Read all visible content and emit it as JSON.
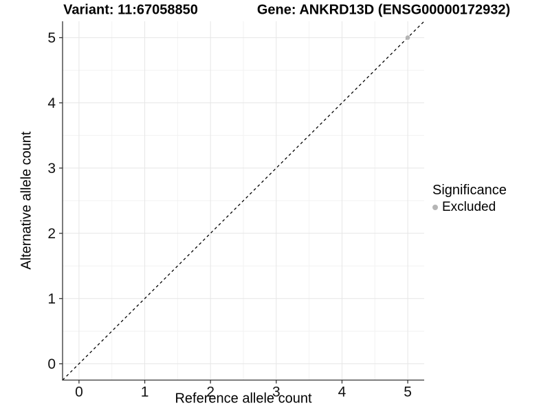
{
  "header": {
    "variant_title": "Variant: 11:67058850",
    "gene_title": "Gene: ANKRD13D (ENSG00000172932)"
  },
  "axes": {
    "x": {
      "label": "Reference allele count"
    },
    "y": {
      "label": "Alternative allele count"
    }
  },
  "legend": {
    "title": "Significance",
    "position": "right",
    "items": [
      {
        "label": "Excluded",
        "color": "#b5b5b5"
      }
    ]
  },
  "colors": {
    "background": "#ffffff",
    "grid_major": "#e6e6e6",
    "grid_minor": "#f2f2f2",
    "axis": "#333333",
    "tick_text": "#111111",
    "title_text": "#000000",
    "excluded_point": "#b5b5b5",
    "reference_line": "#000000"
  },
  "chart_data": {
    "type": "scatter",
    "title_left": "Variant: 11:67058850",
    "title_right": "Gene: ANKRD13D (ENSG00000172932)",
    "xlabel": "Reference allele count",
    "ylabel": "Alternative allele count",
    "xlim": [
      -0.25,
      5.25
    ],
    "ylim": [
      -0.25,
      5.25
    ],
    "x_ticks": [
      0,
      1,
      2,
      3,
      4,
      5
    ],
    "y_ticks": [
      0,
      1,
      2,
      3,
      4,
      5
    ],
    "grid": true,
    "minor_grid": true,
    "legend_position": "right",
    "reference_line": {
      "kind": "identity",
      "style": "dashed",
      "color": "#000000"
    },
    "series": [
      {
        "name": "Excluded",
        "color": "#b5b5b5",
        "points": [
          {
            "x": 5,
            "y": 5
          }
        ]
      }
    ]
  }
}
